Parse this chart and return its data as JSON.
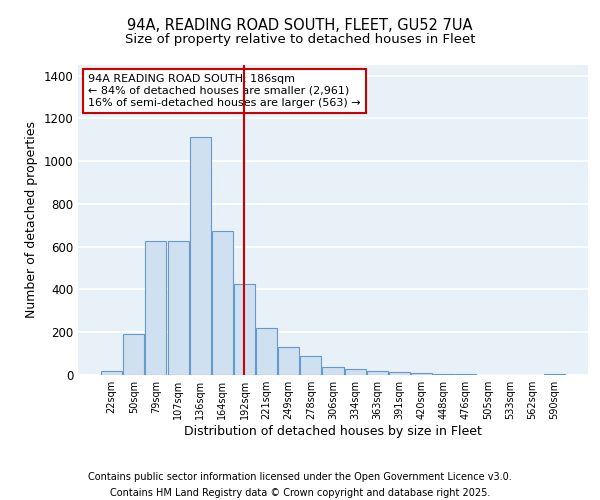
{
  "title_line1": "94A, READING ROAD SOUTH, FLEET, GU52 7UA",
  "title_line2": "Size of property relative to detached houses in Fleet",
  "xlabel": "Distribution of detached houses by size in Fleet",
  "ylabel": "Number of detached properties",
  "bar_color": "#cfe0f0",
  "bar_edgecolor": "#6699cc",
  "background_color": "#e8f0f8",
  "grid_color": "#ffffff",
  "annotation_text": "94A READING ROAD SOUTH: 186sqm\n← 84% of detached houses are smaller (2,961)\n16% of semi-detached houses are larger (563) →",
  "vline_color": "#cc0000",
  "annotation_box_edgecolor": "#cc0000",
  "categories": [
    "22sqm",
    "50sqm",
    "79sqm",
    "107sqm",
    "136sqm",
    "164sqm",
    "192sqm",
    "221sqm",
    "249sqm",
    "278sqm",
    "306sqm",
    "334sqm",
    "363sqm",
    "391sqm",
    "420sqm",
    "448sqm",
    "476sqm",
    "505sqm",
    "533sqm",
    "562sqm",
    "590sqm"
  ],
  "values": [
    20,
    193,
    626,
    627,
    1113,
    673,
    425,
    220,
    130,
    90,
    37,
    30,
    18,
    14,
    10,
    7,
    3,
    0,
    0,
    0,
    5
  ],
  "ylim": [
    0,
    1450
  ],
  "yticks": [
    0,
    200,
    400,
    600,
    800,
    1000,
    1200,
    1400
  ],
  "vline_bin_index": 6,
  "footer_line1": "Contains HM Land Registry data © Crown copyright and database right 2025.",
  "footer_line2": "Contains public sector information licensed under the Open Government Licence v3.0."
}
